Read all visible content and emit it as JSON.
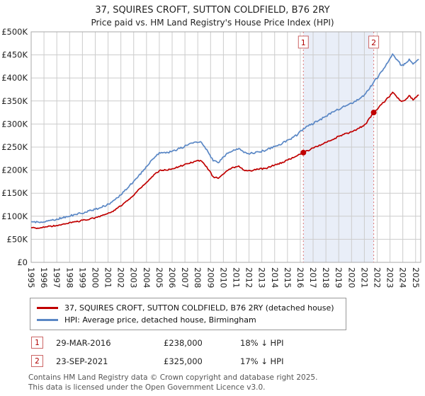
{
  "title": "37, SQUIRES CROFT, SUTTON COLDFIELD, B76 2RY",
  "subtitle": "Price paid vs. HM Land Registry's House Price Index (HPI)",
  "legend": {
    "series1": "37, SQUIRES CROFT, SUTTON COLDFIELD, B76 2RY (detached house)",
    "series2": "HPI: Average price, detached house, Birmingham"
  },
  "transactions": [
    {
      "marker": "1",
      "date": "29-MAR-2016",
      "price": "£238,000",
      "hpi": "18% ↓ HPI"
    },
    {
      "marker": "2",
      "date": "23-SEP-2021",
      "price": "£325,000",
      "hpi": "17% ↓ HPI"
    }
  ],
  "footer": {
    "line1": "Contains HM Land Registry data © Crown copyright and database right 2025.",
    "line2": "This data is licensed under the Open Government Licence v3.0."
  },
  "colors": {
    "property": "#c00000",
    "hpi": "#5a87c5",
    "band": "#e9eef8",
    "grid": "#cccccc",
    "frame": "#aaaaaa",
    "dashed_line": "#dd7777",
    "marker_box_border": "#cc6666",
    "marker_text": "#b00000",
    "axis_text": "#222222"
  },
  "chart_data": {
    "type": "line",
    "title": "37, SQUIRES CROFT, SUTTON COLDFIELD, B76 2RY",
    "subtitle": "Price paid vs. HM Land Registry's House Price Index (HPI)",
    "xlabel": "",
    "ylabel": "",
    "grid": true,
    "legend_position": "bottom",
    "ylim": [
      0,
      500000
    ],
    "ytick_step": 50000,
    "ytick_labels": [
      "£0",
      "£50K",
      "£100K",
      "£150K",
      "£200K",
      "£250K",
      "£300K",
      "£350K",
      "£400K",
      "£450K",
      "£500K"
    ],
    "xlim": [
      1995,
      2025.4
    ],
    "x_years": [
      1995,
      1996,
      1997,
      1998,
      1999,
      2000,
      2001,
      2002,
      2003,
      2004,
      2005,
      2006,
      2007,
      2008,
      2009,
      2010,
      2011,
      2012,
      2013,
      2014,
      2015,
      2016,
      2017,
      2018,
      2019,
      2020,
      2021,
      2022,
      2023,
      2024,
      2025
    ],
    "x": [
      1995.0,
      1995.6,
      1996.2,
      1997.0,
      1997.8,
      1998.5,
      1999.2,
      2000.0,
      2000.7,
      2001.3,
      2002.0,
      2002.6,
      2003.2,
      2003.8,
      2004.4,
      2005.0,
      2005.5,
      2006.0,
      2006.6,
      2007.2,
      2007.8,
      2008.2,
      2008.7,
      2009.2,
      2009.6,
      2010.2,
      2010.8,
      2011.2,
      2011.6,
      2012.1,
      2012.7,
      2013.3,
      2014.0,
      2014.6,
      2015.2,
      2015.8,
      2016.24,
      2016.8,
      2017.4,
      2018.0,
      2018.7,
      2019.3,
      2020.0,
      2020.6,
      2021.1,
      2021.73,
      2022.1,
      2022.5,
      2022.9,
      2023.2,
      2023.5,
      2023.9,
      2024.2,
      2024.5,
      2024.8,
      2025.25
    ],
    "series": [
      {
        "id": "property",
        "name": "37, SQUIRES CROFT, SUTTON COLDFIELD, B76 2RY (detached house)",
        "color": "#c00000",
        "noise": 1600,
        "values": [
          75000,
          74000,
          77000,
          80000,
          84000,
          88000,
          92000,
          97000,
          103000,
          110000,
          122000,
          136000,
          152000,
          168000,
          185000,
          199000,
          200000,
          203000,
          208000,
          214000,
          219000,
          221000,
          207000,
          186000,
          182000,
          197000,
          206000,
          209000,
          200000,
          199000,
          202000,
          204000,
          211000,
          217000,
          224000,
          232000,
          238000,
          245000,
          252000,
          260000,
          269000,
          277000,
          283000,
          291000,
          300000,
          325000,
          335000,
          347000,
          358000,
          369000,
          360000,
          349000,
          352000,
          362000,
          352000,
          363000
        ]
      },
      {
        "id": "hpi",
        "name": "HPI: Average price, detached house, Birmingham",
        "color": "#5a87c5",
        "noise": 2200,
        "values": [
          88000,
          87000,
          90000,
          94000,
          99000,
          104000,
          109000,
          115000,
          122000,
          131000,
          146000,
          163000,
          182000,
          201000,
          222000,
          238000,
          237000,
          241000,
          247000,
          254000,
          261000,
          262000,
          245000,
          220000,
          216000,
          234000,
          244000,
          247000,
          238000,
          236000,
          240000,
          243000,
          251000,
          258000,
          267000,
          277000,
          290000,
          298000,
          307000,
          317000,
          328000,
          337000,
          345000,
          354000,
          366000,
          391000,
          403000,
          420000,
          437000,
          452000,
          440000,
          427000,
          431000,
          441000,
          430000,
          440000
        ]
      }
    ],
    "sale_points": [
      {
        "x": 2016.24,
        "value": 238000,
        "label": "1",
        "date": "29-MAR-2016"
      },
      {
        "x": 2021.73,
        "value": 325000,
        "label": "2",
        "date": "23-SEP-2021"
      }
    ],
    "shaded_region": [
      2016.24,
      2021.73
    ]
  }
}
